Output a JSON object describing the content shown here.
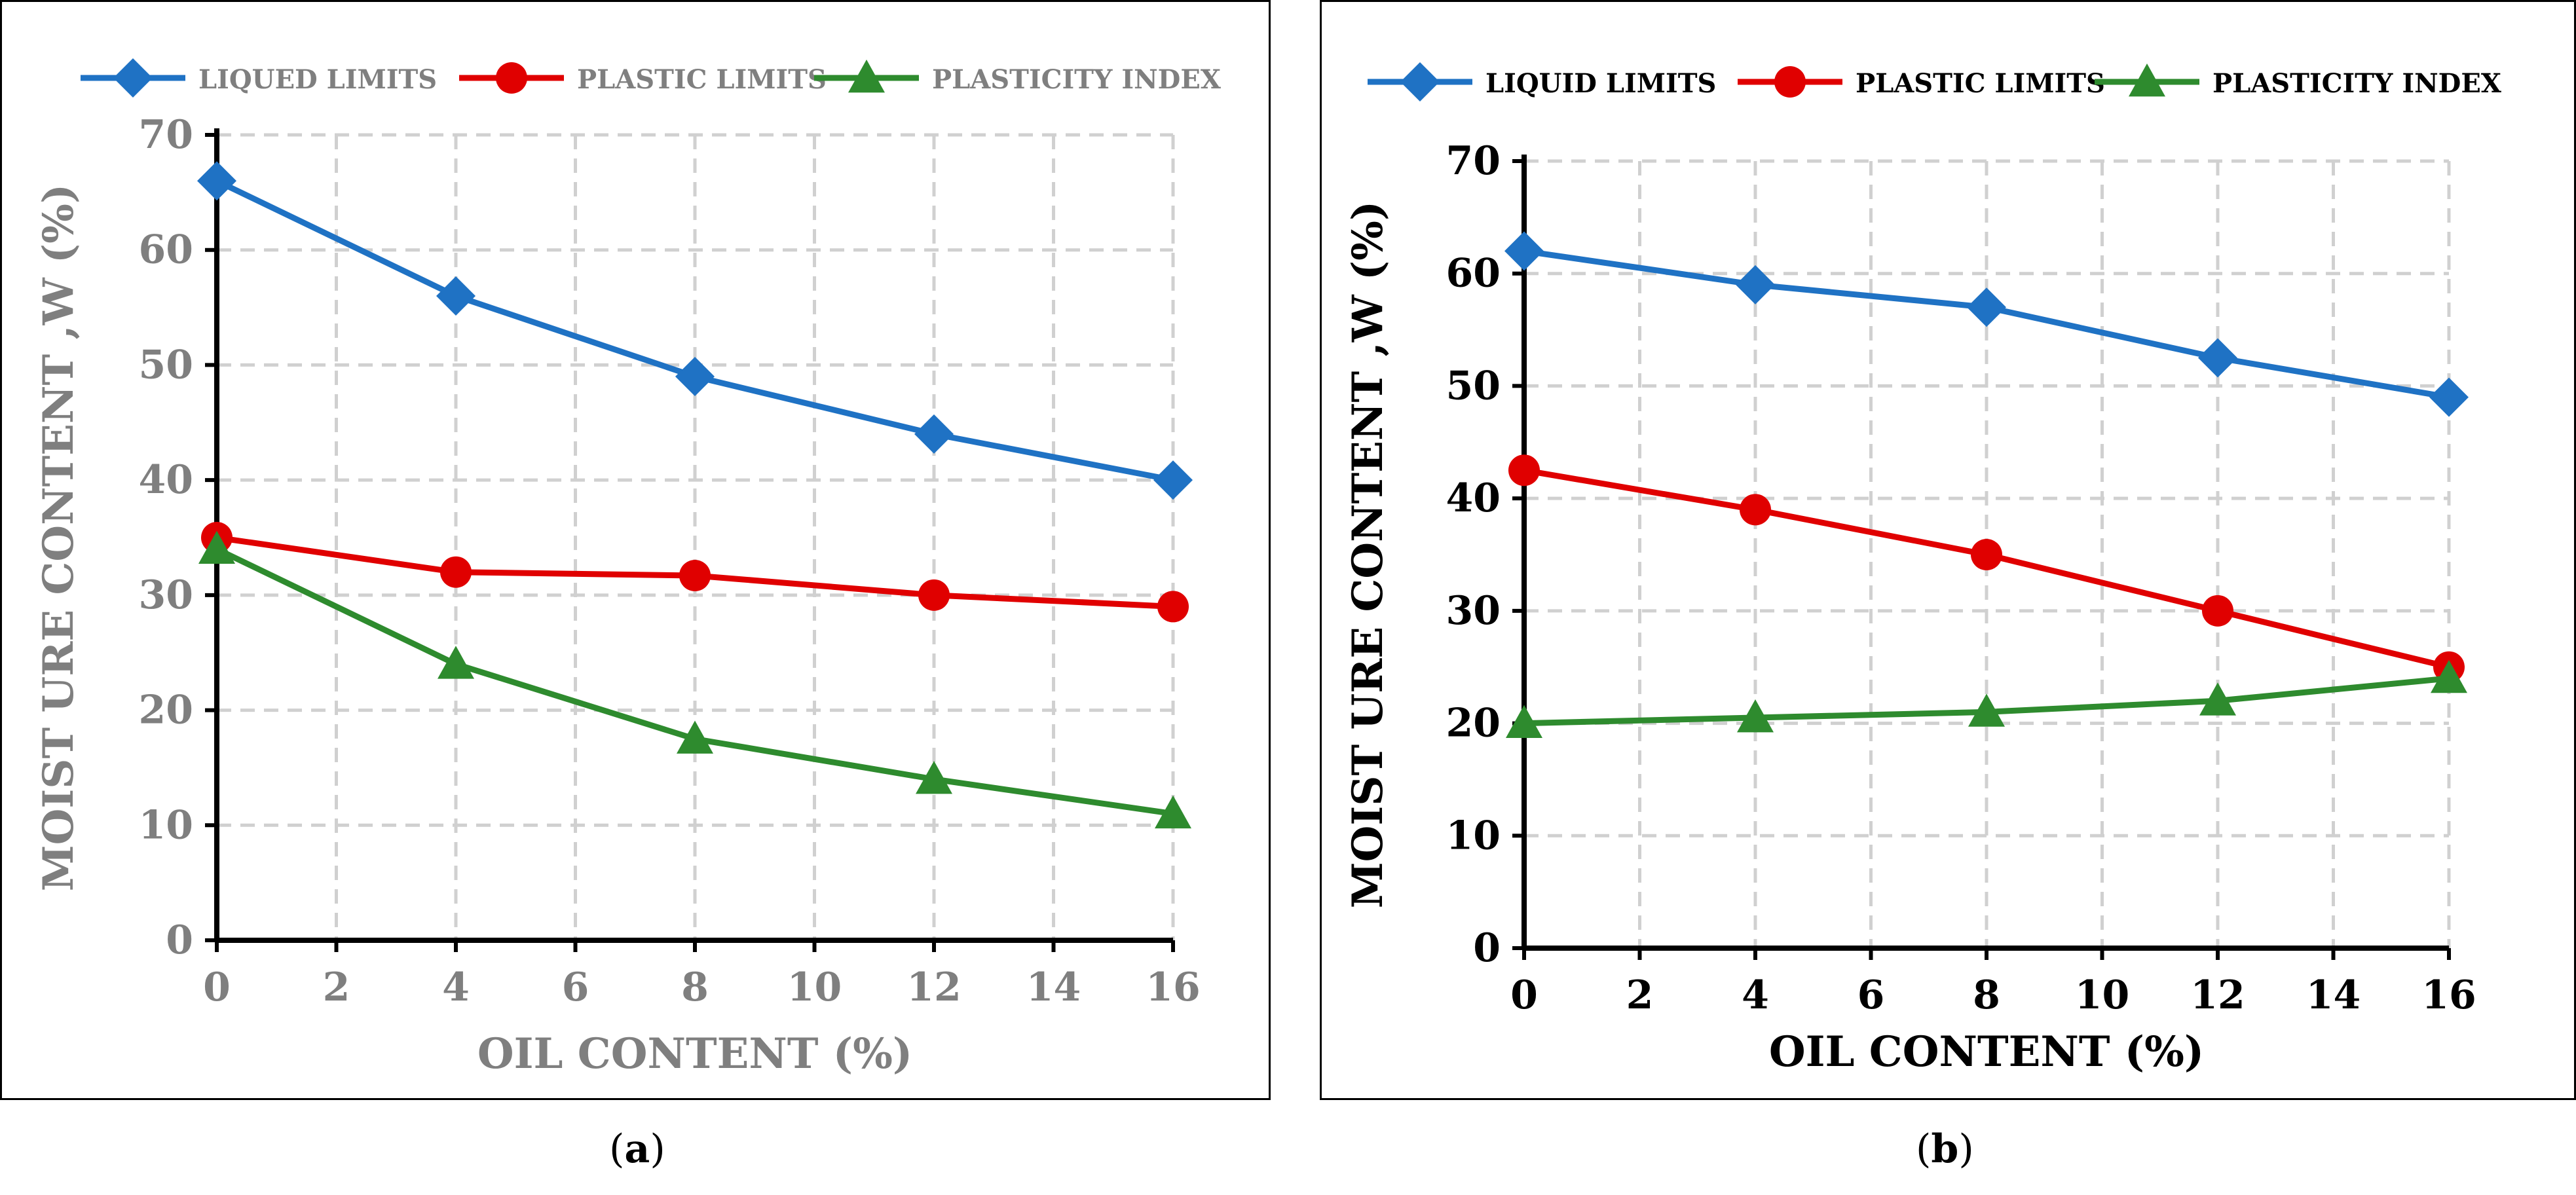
{
  "chart_data": [
    {
      "id": "a",
      "type": "line",
      "title": "",
      "xlabel": "OIL CONTENT  (%)",
      "ylabel": "MOIST URE CONTENT ,W (%)",
      "x": [
        0,
        4,
        8,
        12,
        16
      ],
      "xlim": [
        0,
        16
      ],
      "ylim": [
        0,
        70
      ],
      "xticks": [
        0,
        2,
        4,
        6,
        8,
        10,
        12,
        14,
        16
      ],
      "yticks": [
        0,
        10,
        20,
        30,
        40,
        50,
        60,
        70
      ],
      "grid": true,
      "legend_position": "top",
      "series": [
        {
          "name": "LIQUED LIMITS",
          "color": "#1F72C4",
          "marker": "diamond",
          "values": [
            66,
            56,
            49,
            44,
            40
          ]
        },
        {
          "name": "PLASTIC LIMITS",
          "color": "#E00000",
          "marker": "circle",
          "values": [
            35,
            32,
            31.7,
            30,
            29
          ]
        },
        {
          "name": "PLASTICITY INDEX",
          "color": "#2E8B2E",
          "marker": "triangle",
          "values": [
            34,
            24,
            17.5,
            14,
            11
          ]
        }
      ],
      "label_color": "#7F7F7F",
      "caption": "a"
    },
    {
      "id": "b",
      "type": "line",
      "title": "",
      "xlabel": "OIL CONTENT (%)",
      "ylabel": "MOIST URE CONTENT ,W (%)",
      "x": [
        0,
        4,
        8,
        12,
        16
      ],
      "xlim": [
        0,
        16
      ],
      "ylim": [
        0,
        70
      ],
      "xticks": [
        0,
        2,
        4,
        6,
        8,
        10,
        12,
        14,
        16
      ],
      "yticks": [
        0,
        10,
        20,
        30,
        40,
        50,
        60,
        70
      ],
      "grid": true,
      "legend_position": "top",
      "series": [
        {
          "name": "LIQUID LIMITS",
          "color": "#1F72C4",
          "marker": "diamond",
          "values": [
            62,
            59,
            57,
            52.5,
            49
          ]
        },
        {
          "name": "PLASTIC LIMITS",
          "color": "#E00000",
          "marker": "circle",
          "values": [
            42.5,
            39,
            35,
            30,
            25
          ]
        },
        {
          "name": "PLASTICITY INDEX",
          "color": "#2E8B2E",
          "marker": "triangle",
          "values": [
            20,
            20.5,
            21,
            22,
            24
          ]
        }
      ],
      "label_color": "#000000",
      "caption": "b"
    }
  ]
}
